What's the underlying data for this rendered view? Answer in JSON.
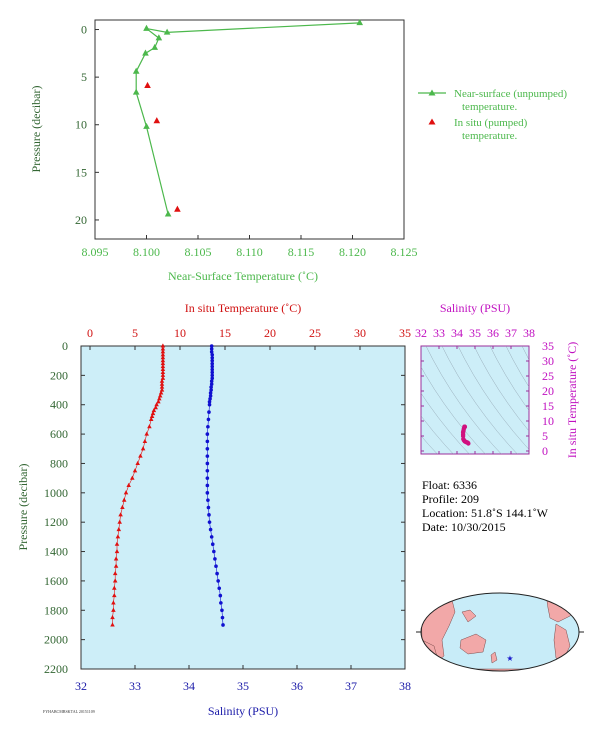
{
  "chart_data": [
    {
      "type": "line",
      "xlabel": "Near-Surface Temperature (˚C)",
      "ylabel": "Pressure (decibar)",
      "xlim": [
        8.095,
        8.125
      ],
      "ylim": [
        22,
        -1
      ],
      "xticks": [
        "8.095",
        "8.100",
        "8.105",
        "8.110",
        "8.115",
        "8.120",
        "8.125"
      ],
      "yticks": [
        "0",
        "5",
        "10",
        "15",
        "20"
      ],
      "xtick_values": [
        8.095,
        8.1,
        8.105,
        8.11,
        8.115,
        8.12,
        8.125
      ],
      "ytick_values": [
        0,
        5,
        10,
        15,
        20
      ],
      "legend_position": "right",
      "series": [
        {
          "name": "Near-surface (unpumped) temperature.",
          "color": "#4cb84c",
          "marker": "triangle",
          "line": true,
          "x": [
            8.1207,
            8.102,
            8.1,
            8.1012,
            8.1008,
            8.0999,
            8.099,
            8.099,
            8.1,
            8.1021
          ],
          "y": [
            -0.7,
            0.3,
            -0.1,
            0.9,
            1.9,
            2.5,
            4.4,
            6.6,
            10.2,
            19.4
          ]
        },
        {
          "name": "In situ (pumped) temperature.",
          "color": "#e01010",
          "marker": "triangle",
          "line": false,
          "x": [
            8.1001,
            8.101,
            8.103
          ],
          "y": [
            5.9,
            9.6,
            18.9
          ]
        }
      ]
    },
    {
      "type": "line",
      "ylabel": "Pressure (decibar)",
      "ylim": [
        2200,
        0
      ],
      "yticks": [
        "0",
        "200",
        "400",
        "600",
        "800",
        "1000",
        "1200",
        "1400",
        "1600",
        "1800",
        "2000",
        "2200"
      ],
      "ytick_values": [
        0,
        200,
        400,
        600,
        800,
        1000,
        1200,
        1400,
        1600,
        1800,
        2000,
        2200
      ],
      "top_axis": {
        "label": "In situ Temperature (˚C)",
        "ticks": [
          "0",
          "5",
          "10",
          "15",
          "20",
          "25",
          "30",
          "35"
        ],
        "tick_values": [
          0,
          5,
          10,
          15,
          20,
          25,
          30,
          35
        ],
        "range": [
          -1,
          35
        ],
        "color": "#d01010"
      },
      "bottom_axis": {
        "label": "Salinity (PSU)",
        "ticks": [
          "32",
          "33",
          "34",
          "35",
          "36",
          "37",
          "38"
        ],
        "tick_values": [
          32,
          33,
          34,
          35,
          36,
          37,
          38
        ],
        "range": [
          32,
          38
        ],
        "color": "#1a1aa8"
      },
      "background": "#cdeef8",
      "series": [
        {
          "name": "",
          "axis": "top",
          "color": "#e01010",
          "marker": "triangle",
          "p": [
            0,
            20,
            40,
            60,
            80,
            100,
            120,
            140,
            160,
            180,
            200,
            220,
            240,
            260,
            280,
            300,
            320,
            340,
            360,
            380,
            400,
            420,
            440,
            460,
            480,
            500,
            550,
            600,
            650,
            700,
            750,
            800,
            850,
            900,
            950,
            1000,
            1050,
            1100,
            1150,
            1200,
            1250,
            1300,
            1350,
            1400,
            1450,
            1500,
            1550,
            1600,
            1650,
            1700,
            1750,
            1800,
            1850,
            1900
          ],
          "t": [
            8.1,
            8.1,
            8.1,
            8.1,
            8.1,
            8.1,
            8.1,
            8.1,
            8.1,
            8.1,
            8.1,
            8.1,
            8.0,
            8.0,
            8.0,
            8.0,
            7.9,
            7.8,
            7.7,
            7.6,
            7.4,
            7.3,
            7.1,
            7.0,
            6.9,
            6.8,
            6.6,
            6.3,
            6.1,
            5.9,
            5.6,
            5.3,
            5.0,
            4.7,
            4.3,
            4.0,
            3.8,
            3.6,
            3.4,
            3.3,
            3.2,
            3.1,
            3.0,
            3.0,
            2.9,
            2.9,
            2.8,
            2.8,
            2.7,
            2.7,
            2.6,
            2.6,
            2.5,
            2.5
          ]
        },
        {
          "name": "",
          "axis": "bottom",
          "color": "#1010d0",
          "marker": "circle",
          "p": [
            0,
            20,
            40,
            60,
            80,
            100,
            120,
            140,
            160,
            180,
            200,
            220,
            240,
            260,
            280,
            300,
            320,
            340,
            360,
            380,
            400,
            450,
            500,
            550,
            600,
            650,
            700,
            750,
            800,
            850,
            900,
            950,
            1000,
            1050,
            1100,
            1150,
            1200,
            1250,
            1300,
            1350,
            1400,
            1450,
            1500,
            1550,
            1600,
            1650,
            1700,
            1750,
            1800,
            1850,
            1900
          ],
          "s": [
            34.42,
            34.42,
            34.42,
            34.43,
            34.43,
            34.43,
            34.43,
            34.43,
            34.43,
            34.43,
            34.43,
            34.43,
            34.42,
            34.42,
            34.41,
            34.41,
            34.4,
            34.4,
            34.39,
            34.38,
            34.38,
            34.37,
            34.36,
            34.35,
            34.34,
            34.34,
            34.34,
            34.34,
            34.34,
            34.34,
            34.34,
            34.34,
            34.34,
            34.35,
            34.36,
            34.37,
            34.38,
            34.4,
            34.42,
            34.44,
            34.46,
            34.48,
            34.5,
            34.52,
            34.54,
            34.56,
            34.58,
            34.59,
            34.61,
            34.62,
            34.63
          ]
        }
      ]
    },
    {
      "type": "scatter",
      "xlabel": "Salinity (PSU)",
      "ylabel": "In situ Temperature (˚C)",
      "xlim": [
        32,
        38
      ],
      "ylim": [
        -1,
        35
      ],
      "xticks": [
        "32",
        "33",
        "34",
        "35",
        "36",
        "37",
        "38"
      ],
      "xtick_values": [
        32,
        33,
        34,
        35,
        36,
        37,
        38
      ],
      "yticks": [
        "0",
        "5",
        "10",
        "15",
        "20",
        "25",
        "30",
        "35"
      ],
      "ytick_values": [
        0,
        5,
        10,
        15,
        20,
        25,
        30,
        35
      ],
      "background": "#cdeef8",
      "color": "#d0107f",
      "series": [
        {
          "name": "",
          "s": [
            34.42,
            34.42,
            34.43,
            34.43,
            34.42,
            34.4,
            34.38,
            34.36,
            34.34,
            34.34,
            34.34,
            34.35,
            34.38,
            34.42,
            34.46,
            34.5,
            34.54,
            34.58,
            34.61,
            34.63
          ],
          "t": [
            8.1,
            8.1,
            8.1,
            8.0,
            8.0,
            7.8,
            7.4,
            6.8,
            6.3,
            5.6,
            5.0,
            4.0,
            3.6,
            3.3,
            3.1,
            3.0,
            2.9,
            2.8,
            2.7,
            2.5
          ]
        }
      ]
    }
  ],
  "float_info": {
    "float": "Float:  6336",
    "profile": "Profile:  209",
    "location": "Location:  51.8˚S  144.1˚W",
    "date": "Date:  10/30/2015"
  },
  "map": {
    "ocean_color": "#c8ecf8",
    "land_color": "#f2a8a8",
    "marker_color": "#1a1acc",
    "marker_symbol": "★"
  },
  "footnote": "FYHABCMBSKTAL 20151109"
}
